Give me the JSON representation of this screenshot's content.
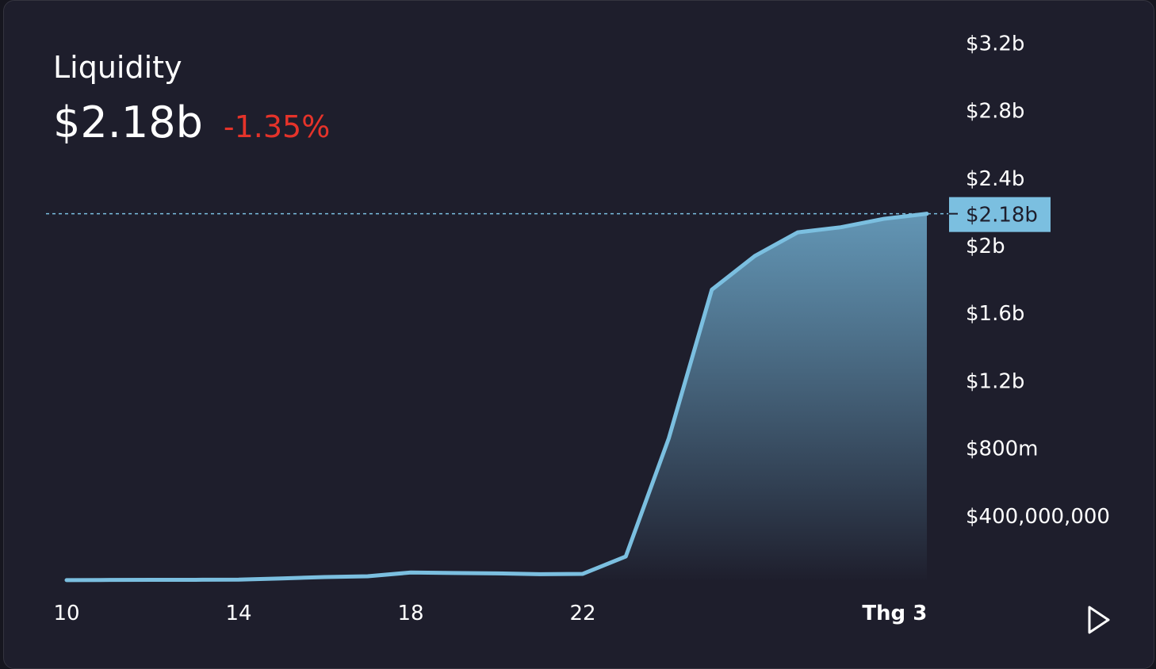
{
  "header": {
    "title": "Liquidity",
    "value": "$2.18b",
    "change": "-1.35%"
  },
  "colors": {
    "background": "#1e1e2c",
    "line": "#7bbfe0",
    "negative": "#e5332a",
    "text": "#ffffff"
  },
  "chart_data": {
    "type": "area",
    "title": "Liquidity",
    "x_ticks": [
      "10",
      "14",
      "18",
      "22",
      "Thg 3"
    ],
    "y_ticks": [
      "$3.2b",
      "$2.8b",
      "$2.4b",
      "$2b",
      "$1.6b",
      "$1.2b",
      "$800m",
      "$400,000,000"
    ],
    "ylim": [
      0,
      3200000000
    ],
    "current_label": "$2.18b",
    "current_value": 2180000000,
    "series": [
      {
        "values": [
          10000000,
          11000000,
          12000000,
          12000000,
          13000000,
          20000000,
          28000000,
          33000000,
          55000000,
          52000000,
          50000000,
          45000000,
          47000000,
          150000000,
          850000000,
          1730000000,
          1930000000,
          2070000000,
          2100000000,
          2150000000,
          2180000000
        ]
      }
    ],
    "x_positions_days": [
      10,
      11,
      12,
      13,
      14,
      15,
      16,
      17,
      18,
      19,
      20,
      21,
      22,
      23,
      24,
      25,
      26,
      27,
      28,
      29,
      30
    ],
    "grid": false,
    "play_icon": "play-icon"
  }
}
